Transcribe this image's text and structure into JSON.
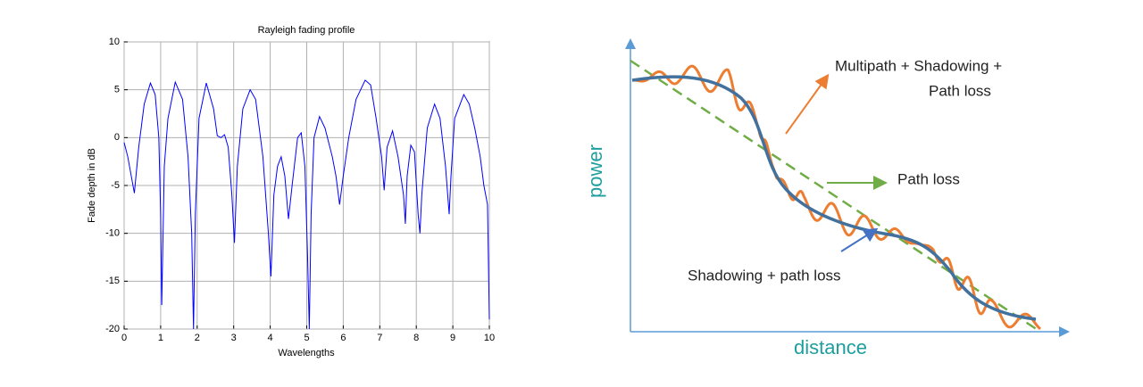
{
  "chart_data": {
    "type": "line",
    "title": "Rayleigh fading profile",
    "x_label": "Wavelengths",
    "y_label": "Fade depth in dB",
    "x": [
      0,
      0.1,
      0.28,
      0.4,
      0.55,
      0.72,
      0.85,
      0.95,
      1.0,
      1.03,
      1.1,
      1.2,
      1.4,
      1.6,
      1.75,
      1.85,
      1.9,
      1.95,
      2.05,
      2.25,
      2.45,
      2.55,
      2.65,
      2.75,
      2.85,
      2.95,
      3.02,
      3.1,
      3.25,
      3.45,
      3.6,
      3.8,
      3.95,
      4.02,
      4.1,
      4.2,
      4.3,
      4.4,
      4.5,
      4.6,
      4.75,
      4.85,
      4.95,
      5.02,
      5.07,
      5.12,
      5.2,
      5.35,
      5.5,
      5.7,
      5.8,
      5.9,
      6.0,
      6.15,
      6.35,
      6.6,
      6.75,
      6.9,
      7.05,
      7.12,
      7.2,
      7.35,
      7.5,
      7.65,
      7.7,
      7.75,
      7.85,
      7.95,
      8.05,
      8.1,
      8.15,
      8.3,
      8.5,
      8.65,
      8.8,
      8.9,
      8.95,
      9.05,
      9.3,
      9.45,
      9.6,
      9.75,
      9.85,
      9.95,
      10.0
    ],
    "series": [
      {
        "name": "Fade depth",
        "color": "#0000ff",
        "values": [
          -0.5,
          -2,
          -5.8,
          -1,
          3.5,
          5.7,
          4.5,
          0,
          -8,
          -17.5,
          -3,
          2,
          5.8,
          4,
          -2,
          -10,
          -20,
          -8,
          2,
          5.7,
          3,
          0.2,
          0,
          0.3,
          -1,
          -6,
          -11,
          -3,
          3,
          5,
          4,
          -2,
          -10,
          -14.5,
          -6,
          -3,
          -2,
          -4,
          -8.5,
          -5,
          0,
          0.5,
          -3,
          -12,
          -20,
          -8,
          0,
          2.2,
          1,
          -2,
          -4,
          -7,
          -4,
          0,
          4,
          6,
          5.5,
          2,
          -2,
          -5.5,
          -1,
          0.7,
          -2,
          -6,
          -9,
          -4,
          -0.8,
          -1.5,
          -8,
          -10,
          -6,
          1,
          3.5,
          2,
          -3,
          -8,
          -4,
          2,
          4.5,
          3.5,
          1,
          -2,
          -5,
          -7,
          -19
        ]
      }
    ],
    "xlim": [
      0,
      10
    ],
    "xticks": [
      0,
      1,
      2,
      3,
      4,
      5,
      6,
      7,
      8,
      9,
      10
    ],
    "ylim": [
      -20,
      10
    ],
    "yticks": [
      -20,
      -15,
      -10,
      -5,
      0,
      5,
      10
    ],
    "grid": true
  },
  "diagram": {
    "multipath_label": [
      "Multipath + Shadowing +",
      "Path loss"
    ],
    "path_loss_label": "Path loss",
    "shadowing_label": "Shadowing + path loss",
    "y_axis_label": "power",
    "x_axis_label": "distance"
  }
}
